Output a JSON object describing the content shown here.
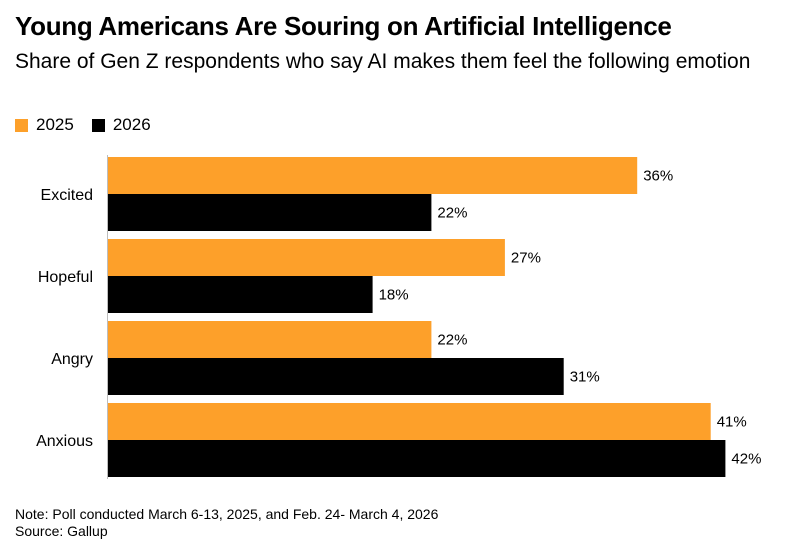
{
  "title": "Young Americans Are Souring on Artificial Intelligence",
  "subtitle": "Share of Gen Z respondents who say AI makes them feel the following emotion",
  "note": "Note: Poll conducted March 6-13, 2025, and Feb. 24- March 4, 2026",
  "source": "Source: Gallup",
  "colors": {
    "s2025": "#fda02a",
    "s2026": "#000000",
    "axis": "#bdbdbd"
  },
  "chart_data": {
    "type": "bar",
    "orientation": "horizontal",
    "categories": [
      "Excited",
      "Hopeful",
      "Angry",
      "Anxious"
    ],
    "series": [
      {
        "name": "2025",
        "values": [
          36,
          27,
          22,
          41
        ]
      },
      {
        "name": "2026",
        "values": [
          22,
          18,
          31,
          42
        ]
      }
    ],
    "value_suffix": "%",
    "xlim": [
      0,
      50
    ],
    "grid": false,
    "legend": "top-left"
  }
}
